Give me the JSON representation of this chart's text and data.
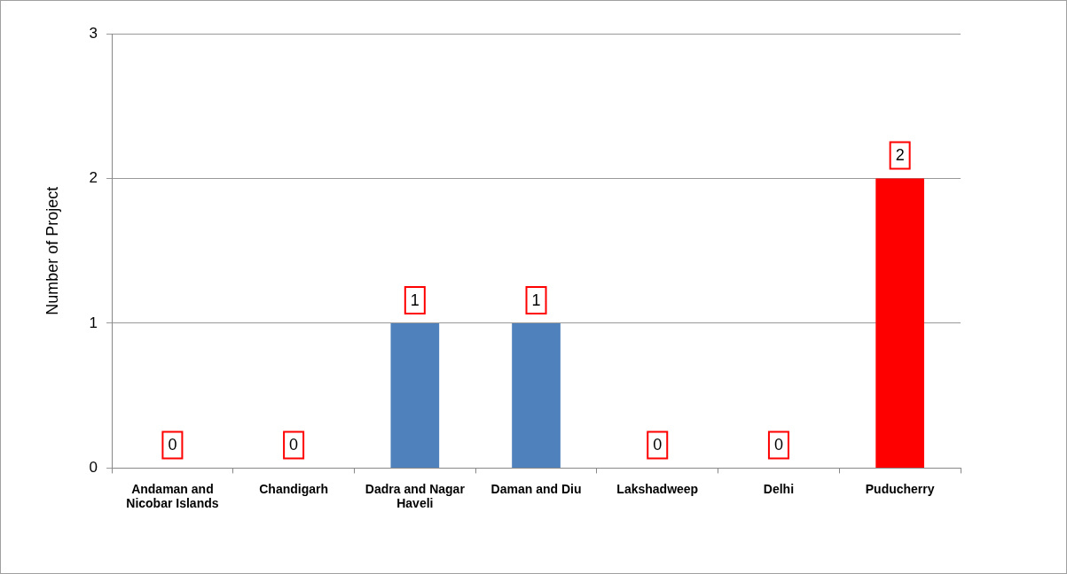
{
  "chart_data": {
    "type": "bar",
    "categories": [
      "Andaman and Nicobar Islands",
      "Chandigarh",
      "Dadra and Nagar Haveli",
      "Daman and Diu",
      "Lakshadweep",
      "Delhi",
      "Puducherry"
    ],
    "values": [
      0,
      0,
      1,
      1,
      0,
      0,
      2
    ],
    "colors": [
      "#4f81bd",
      "#4f81bd",
      "#4f81bd",
      "#4f81bd",
      "#4f81bd",
      "#4f81bd",
      "#ff0000"
    ],
    "ylabel": "Number of Project",
    "ylim": [
      0,
      3
    ],
    "yticks": [
      0,
      1,
      2,
      3
    ],
    "grid": "y",
    "legend": false,
    "data_labels": true
  }
}
